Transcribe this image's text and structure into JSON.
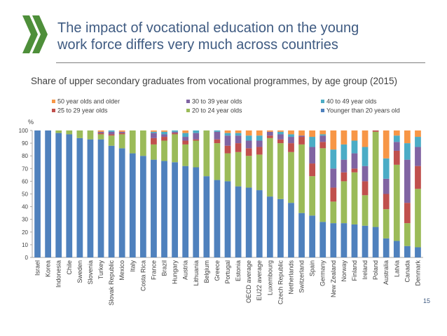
{
  "slide": {
    "title_line1": "The impact of vocational education on the young",
    "title_line2": "work force differs very much across countries",
    "page_number": "15"
  },
  "colors": {
    "title": "#3f5b82",
    "logo": "#4e8f3a"
  },
  "chart_data": {
    "type": "bar",
    "stacked": true,
    "title": "Share of upper secondary graduates from vocational programmes, by age group (2015)",
    "ylabel": "%",
    "ylim": [
      0,
      100
    ],
    "yticks": [
      0,
      10,
      20,
      30,
      40,
      50,
      60,
      70,
      80,
      90,
      100
    ],
    "grid": false,
    "legend_position": "top",
    "categories": [
      "Israel",
      "Korea",
      "Indonesia",
      "Chile",
      "Sweden",
      "Slovenia",
      "Turkey",
      "Slovak Republic",
      "Mexico",
      "Italy",
      "Costa Rica",
      "France",
      "Brazil",
      "Hungary",
      "Austria",
      "Lithuania",
      "Belgium",
      "Greece",
      "Portugal",
      "Estonia",
      "OECD average",
      "EU22 average",
      "Luxembourg",
      "Czech Republic",
      "Netherlands",
      "Switzerland",
      "Spain",
      "Germany",
      "New Zealand",
      "Norway",
      "Finland",
      "Ireland",
      "Poland",
      "Australia",
      "Latvia",
      "Canada",
      "Denmark"
    ],
    "legend_order": [
      5,
      3,
      4,
      2,
      1,
      0
    ],
    "series": [
      {
        "name": "Younger than 20 years old",
        "color": "#4f81bd",
        "values": [
          100,
          100,
          98,
          97,
          94,
          93,
          93,
          88,
          86,
          82,
          80,
          77,
          76,
          75,
          72,
          71,
          64,
          61,
          60,
          56,
          55,
          53,
          48,
          46,
          43,
          35,
          33,
          28,
          27,
          27,
          26,
          25,
          24,
          15,
          13,
          9,
          8
        ]
      },
      {
        "name": "20 to 24 year olds",
        "color": "#9bbb59",
        "values": [
          0,
          0,
          2,
          3,
          6,
          7,
          4,
          8,
          11,
          18,
          20,
          12,
          16,
          22,
          17,
          21,
          36,
          29,
          22,
          27,
          25,
          28,
          46,
          44,
          40,
          54,
          31,
          58,
          17,
          33,
          41,
          24,
          75,
          23,
          60,
          18,
          46
        ]
      },
      {
        "name": "25 to 29 year olds",
        "color": "#c0504d",
        "values": [
          0,
          0,
          0,
          0,
          0,
          0,
          1,
          1,
          1,
          0,
          0,
          5,
          3,
          1,
          3,
          1,
          0,
          3,
          6,
          7,
          6,
          6,
          2,
          3,
          7,
          6,
          10,
          5,
          11,
          7,
          3,
          11,
          1,
          12,
          11,
          16,
          18
        ]
      },
      {
        "name": "30 to 39 year olds",
        "color": "#8064a2",
        "values": [
          0,
          0,
          0,
          0,
          0,
          0,
          1,
          2,
          1,
          0,
          0,
          4,
          2,
          1,
          3,
          5,
          0,
          6,
          8,
          6,
          6,
          5,
          3,
          4,
          5,
          1,
          13,
          5,
          15,
          10,
          12,
          12,
          0,
          12,
          7,
          34,
          15
        ]
      },
      {
        "name": "40 to 49 year olds",
        "color": "#4bacc6",
        "values": [
          0,
          0,
          0,
          0,
          0,
          0,
          0,
          1,
          0,
          0,
          0,
          1,
          2,
          1,
          3,
          2,
          0,
          1,
          2,
          2,
          4,
          4,
          0,
          2,
          2,
          0,
          8,
          1,
          15,
          12,
          10,
          15,
          0,
          16,
          5,
          13,
          8
        ]
      },
      {
        "name": "50 year olds and older",
        "color": "#f79646",
        "values": [
          0,
          0,
          0,
          0,
          0,
          0,
          1,
          0,
          1,
          0,
          0,
          1,
          1,
          0,
          2,
          0,
          0,
          0,
          2,
          2,
          4,
          4,
          1,
          1,
          3,
          4,
          5,
          3,
          15,
          11,
          8,
          13,
          0,
          22,
          4,
          10,
          5
        ]
      }
    ]
  }
}
